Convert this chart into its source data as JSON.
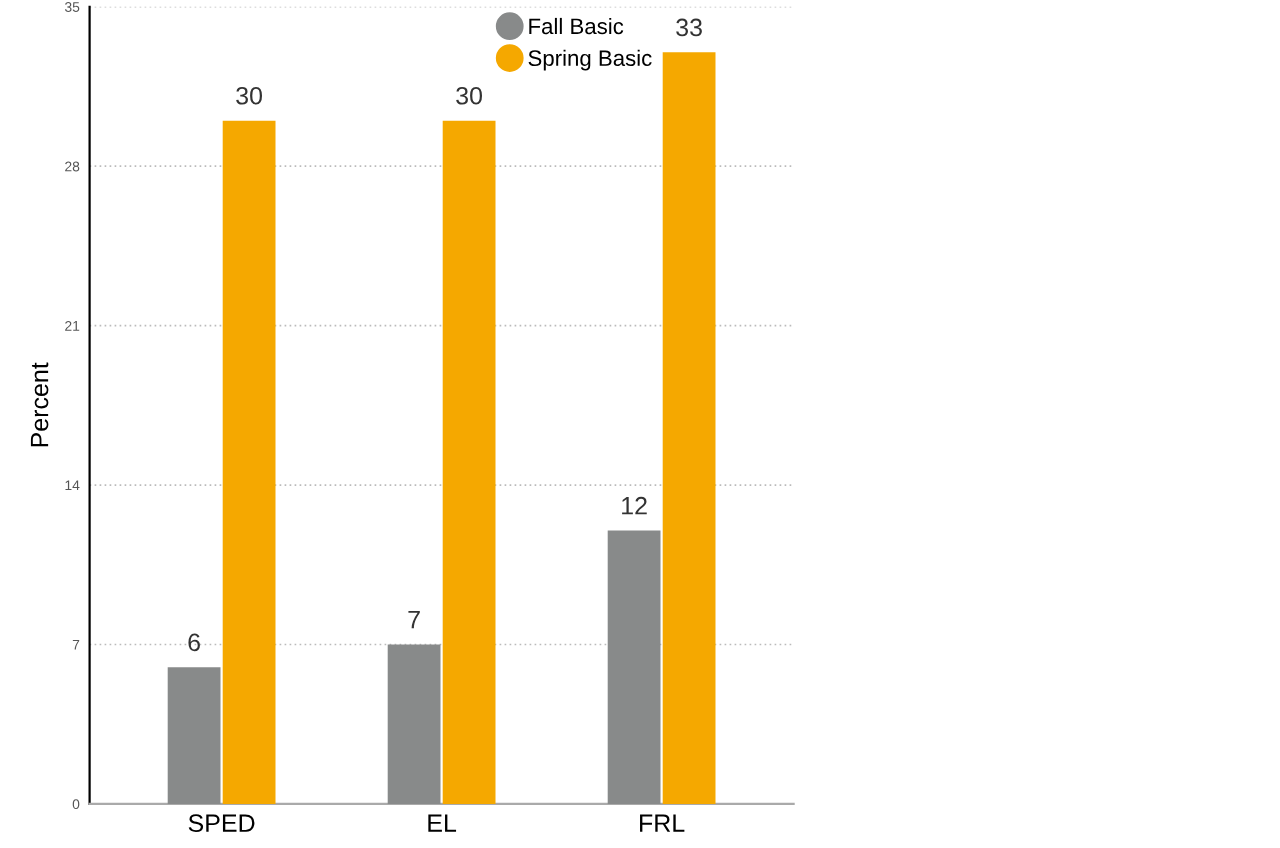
{
  "chart_data": {
    "type": "bar",
    "ylabel": "Percent",
    "categories": [
      "SPED",
      "EL",
      "FRL"
    ],
    "series": [
      {
        "name": "Fall Basic",
        "color": "#888a8a",
        "values": [
          6,
          7,
          12
        ]
      },
      {
        "name": "Spring Basic",
        "color": "#f5a800",
        "values": [
          30,
          30,
          33
        ]
      }
    ],
    "ylim": [
      0,
      35
    ],
    "yticks": [
      0,
      7,
      14,
      21,
      28,
      35
    ],
    "grid": "y",
    "legend": "top right",
    "data_labels": true
  }
}
